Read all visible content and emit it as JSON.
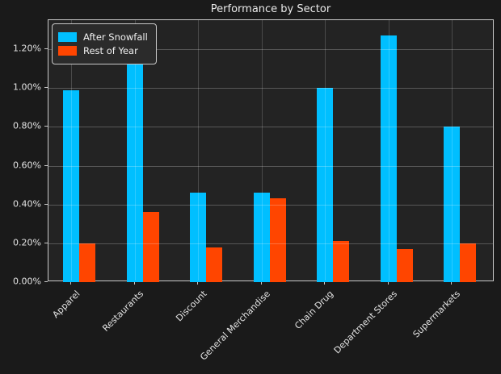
{
  "chart_data": {
    "type": "bar",
    "title": "Performance by Sector",
    "categories": [
      "Apparel",
      "Restaurants",
      "Discount",
      "General Merchandise",
      "Chain Drug",
      "Department Stores",
      "Supermarkets"
    ],
    "series": [
      {
        "name": "After Snowfall",
        "color": "#00bfff",
        "values": [
          0.99,
          1.13,
          0.46,
          0.46,
          1.0,
          1.27,
          0.8
        ]
      },
      {
        "name": "Rest of Year",
        "color": "#ff4500",
        "values": [
          0.2,
          0.36,
          0.18,
          0.43,
          0.21,
          0.17,
          0.2
        ]
      }
    ],
    "yticks": [
      "0.00%",
      "0.20%",
      "0.40%",
      "0.60%",
      "0.80%",
      "1.00%",
      "1.20%"
    ],
    "ylim": [
      0,
      1.35
    ],
    "xlabel": "",
    "ylabel": "",
    "grid": true,
    "grid_on_top": true,
    "legend_position": "upper-left",
    "colors": {
      "figure_background": "#1a1a1a",
      "plot_background": "#232323",
      "frame": "#c9c9c9",
      "text": "#e3e3e3"
    }
  }
}
